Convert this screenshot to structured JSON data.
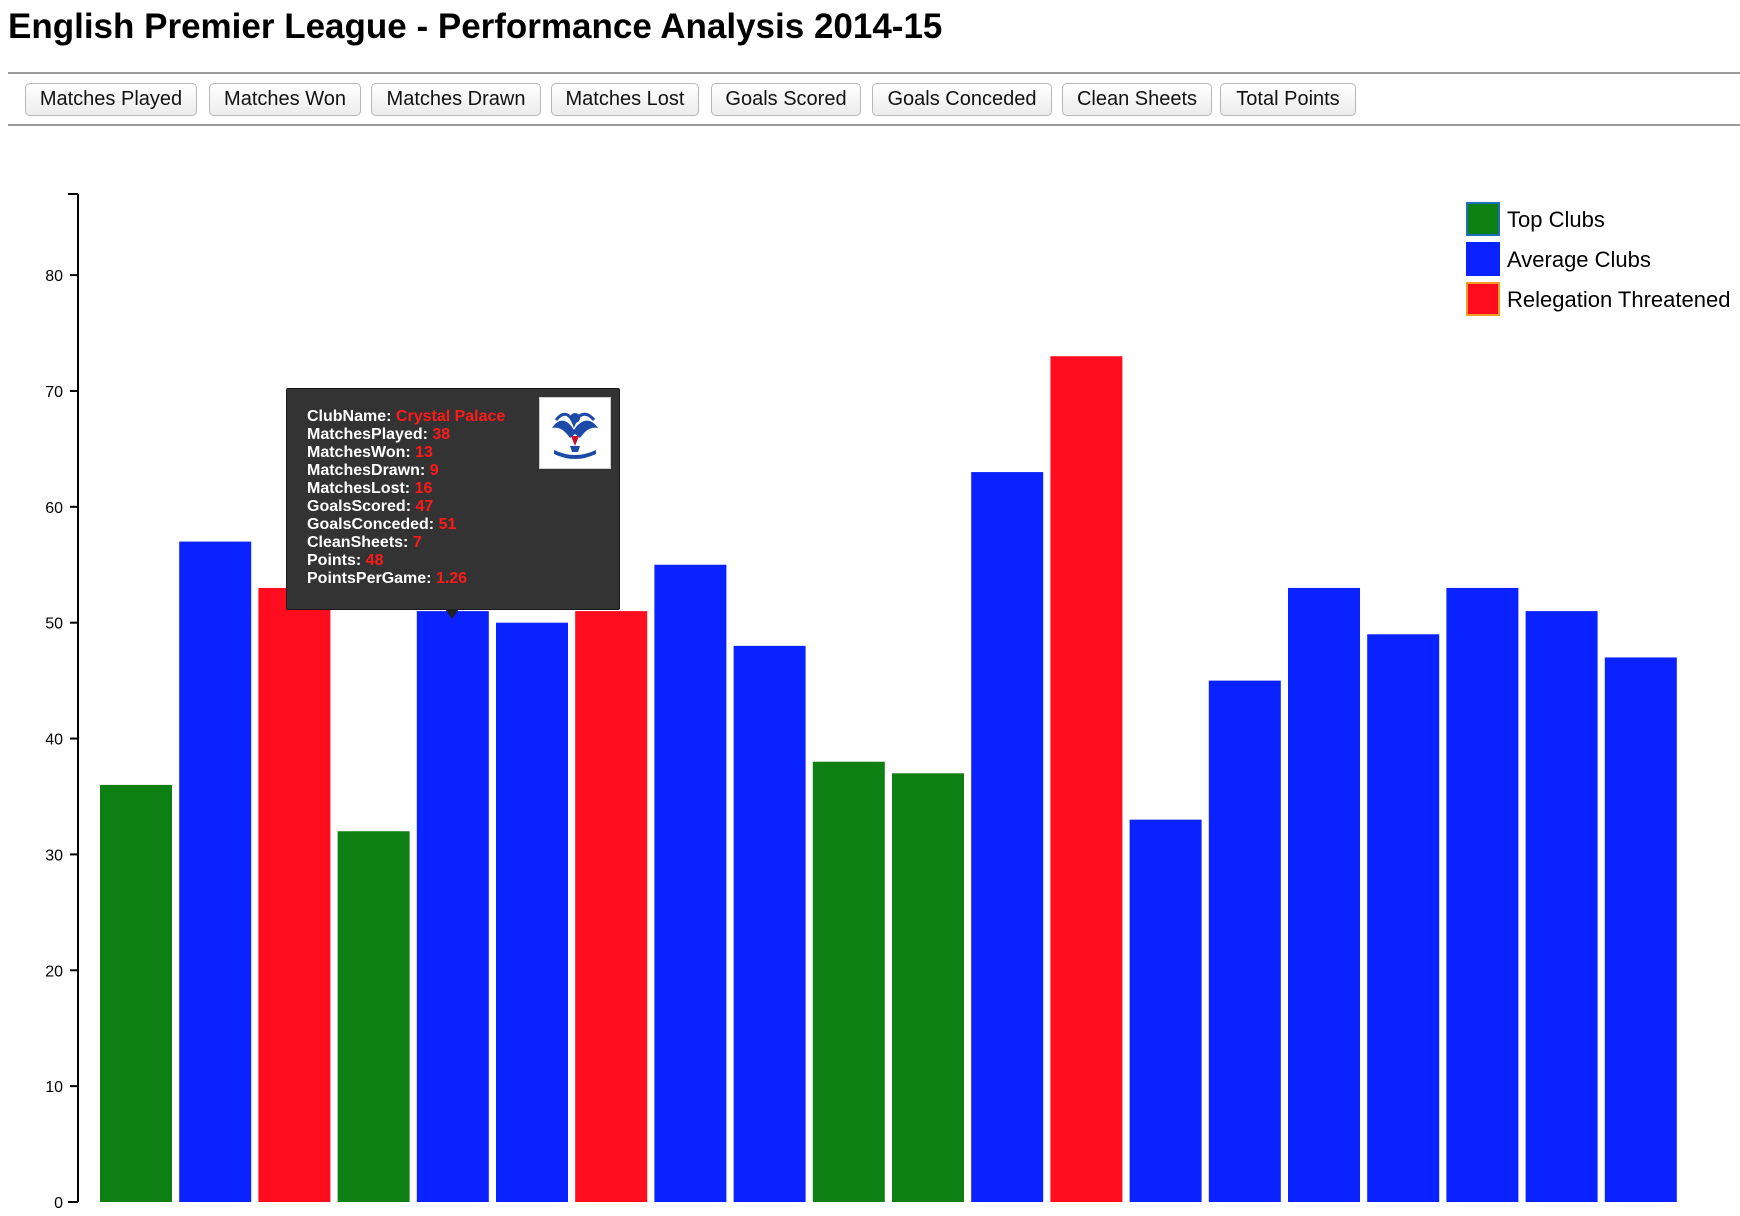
{
  "page": {
    "title": "English Premier League - Performance Analysis 2014-15"
  },
  "toolbar": {
    "buttons": [
      {
        "label": "Matches Played"
      },
      {
        "label": "Matches Won"
      },
      {
        "label": "Matches Drawn"
      },
      {
        "label": "Matches Lost"
      },
      {
        "label": "Goals Scored"
      },
      {
        "label": "Goals Conceded"
      },
      {
        "label": "Clean Sheets"
      },
      {
        "label": "Total Points"
      }
    ]
  },
  "legend": {
    "items": [
      {
        "label": "Top Clubs",
        "color": "#0e7f12",
        "border": "#1d6fb8"
      },
      {
        "label": "Average Clubs",
        "color": "#0a22ff",
        "border": "#0a22ff"
      },
      {
        "label": "Relegation Threatened",
        "color": "#ff0d1e",
        "border": "#f39b27"
      }
    ]
  },
  "chart_data": {
    "type": "bar",
    "title": "",
    "xlabel": "",
    "ylabel": "",
    "ylim": [
      0,
      87
    ],
    "yticks": [
      0,
      10,
      20,
      30,
      40,
      50,
      60,
      70,
      80
    ],
    "values": [
      36,
      57,
      53,
      32,
      51,
      50,
      51,
      55,
      48,
      38,
      37,
      63,
      73,
      33,
      45,
      53,
      49,
      53,
      51,
      47
    ],
    "groups": [
      "Top Clubs",
      "Average Clubs",
      "Relegation Threatened",
      "Top Clubs",
      "Average Clubs",
      "Average Clubs",
      "Relegation Threatened",
      "Average Clubs",
      "Average Clubs",
      "Top Clubs",
      "Top Clubs",
      "Average Clubs",
      "Relegation Threatened",
      "Average Clubs",
      "Average Clubs",
      "Average Clubs",
      "Average Clubs",
      "Average Clubs",
      "Average Clubs",
      "Average Clubs"
    ],
    "group_colors": {
      "Top Clubs": "#0e7f12",
      "Average Clubs": "#0a22ff",
      "Relegation Threatened": "#ff0d1e"
    },
    "grid": false,
    "legend_position": "top-right"
  },
  "tooltip": {
    "logo_icon": "crystal-palace-crest-icon",
    "lines": [
      {
        "label": "ClubName: ",
        "value": "Crystal Palace"
      },
      {
        "label": "MatchesPlayed: ",
        "value": "38"
      },
      {
        "label": "MatchesWon: ",
        "value": "13"
      },
      {
        "label": "MatchesDrawn: ",
        "value": "9"
      },
      {
        "label": "MatchesLost: ",
        "value": "16"
      },
      {
        "label": "GoalsScored: ",
        "value": "47"
      },
      {
        "label": "GoalsConceded: ",
        "value": "51"
      },
      {
        "label": "CleanSheets: ",
        "value": "7"
      },
      {
        "label": "Points: ",
        "value": "48"
      },
      {
        "label": "PointsPerGame: ",
        "value": "1.26"
      }
    ]
  }
}
